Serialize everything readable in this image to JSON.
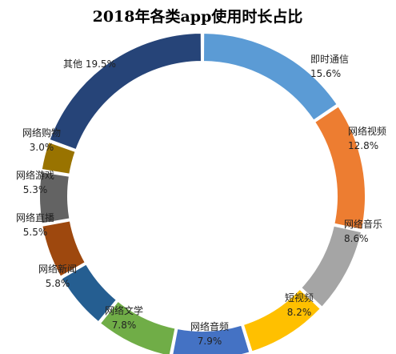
{
  "chart_data": {
    "type": "pie",
    "title": "2018年各类app使用时长占比",
    "categories": [
      "即时通信",
      "网络视频",
      "网络音乐",
      "短视频",
      "网络音频",
      "网络文学",
      "网络新闻",
      "网络直播",
      "网络游戏",
      "网络购物",
      "其他"
    ],
    "values": [
      15.6,
      12.8,
      8.6,
      8.2,
      7.9,
      7.8,
      5.8,
      5.5,
      5.3,
      3.0,
      19.5
    ],
    "value_labels": [
      "15.6%",
      "12.8%",
      "8.6%",
      "8.2%",
      "7.9%",
      "7.8%",
      "5.8%",
      "5.5%",
      "5.3%",
      "3.0%",
      "19.5%"
    ],
    "colors": [
      "#5b9bd5",
      "#ed7d31",
      "#a5a5a5",
      "#ffc000",
      "#4472c4",
      "#70ad47",
      "#255e91",
      "#9e480e",
      "#636363",
      "#997300",
      "#264478"
    ],
    "donut": true,
    "legend": "none"
  }
}
